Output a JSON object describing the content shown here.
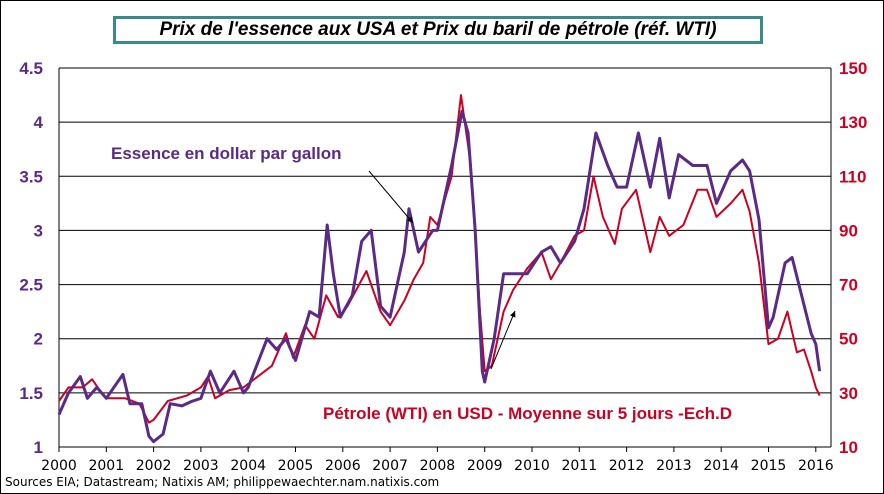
{
  "chart_data": {
    "type": "line",
    "title": "Prix de l'essence aux USA et Prix du baril de pétrole (réf. WTI)",
    "source": "Sources EIA; Datastream; Natixis AM; philippewaechter.nam.natixis.com",
    "xlim": [
      2000,
      2016
    ],
    "x_ticks": [
      "2000",
      "2001",
      "2002",
      "2003",
      "2004",
      "2005",
      "2006",
      "2007",
      "2008",
      "2009",
      "2010",
      "2011",
      "2012",
      "2013",
      "2014",
      "2015",
      "2016"
    ],
    "y_left": {
      "lim": [
        1,
        4.5
      ],
      "ticks": [
        "1",
        "1.5",
        "2",
        "2.5",
        "3",
        "3.5",
        "4",
        "4.5"
      ],
      "color": "#5b2a86"
    },
    "y_right": {
      "lim": [
        10,
        150
      ],
      "ticks": [
        "10",
        "30",
        "50",
        "70",
        "90",
        "110",
        "130",
        "150"
      ],
      "color": "#cc0022"
    },
    "grid": true,
    "series": [
      {
        "name": "Essence en dollar par gallon",
        "axis": "left",
        "color": "#5b2a86",
        "x": [
          2000.0,
          2000.2,
          2000.45,
          2000.6,
          2000.8,
          2001.0,
          2001.35,
          2001.5,
          2001.75,
          2001.9,
          2002.0,
          2002.2,
          2002.35,
          2002.6,
          2002.8,
          2003.0,
          2003.2,
          2003.4,
          2003.7,
          2003.9,
          2004.0,
          2004.4,
          2004.6,
          2004.8,
          2005.0,
          2005.3,
          2005.5,
          2005.67,
          2005.8,
          2005.95,
          2006.2,
          2006.4,
          2006.6,
          2006.8,
          2007.0,
          2007.3,
          2007.4,
          2007.6,
          2007.9,
          2008.0,
          2008.3,
          2008.52,
          2008.65,
          2008.8,
          2008.95,
          2009.0,
          2009.2,
          2009.4,
          2009.6,
          2009.9,
          2010.2,
          2010.4,
          2010.6,
          2010.9,
          2011.1,
          2011.35,
          2011.6,
          2011.8,
          2012.0,
          2012.25,
          2012.5,
          2012.7,
          2012.9,
          2013.1,
          2013.4,
          2013.7,
          2013.9,
          2014.2,
          2014.45,
          2014.6,
          2014.8,
          2015.0,
          2015.1,
          2015.35,
          2015.5,
          2015.7,
          2015.9,
          2016.0,
          2016.08
        ],
        "y": [
          1.3,
          1.5,
          1.65,
          1.45,
          1.55,
          1.45,
          1.67,
          1.4,
          1.4,
          1.1,
          1.05,
          1.12,
          1.4,
          1.38,
          1.42,
          1.45,
          1.7,
          1.5,
          1.7,
          1.5,
          1.55,
          2.0,
          1.9,
          2.0,
          1.8,
          2.25,
          2.2,
          3.05,
          2.6,
          2.2,
          2.4,
          2.9,
          3.0,
          2.3,
          2.2,
          2.8,
          3.2,
          2.8,
          3.0,
          3.0,
          3.6,
          4.1,
          3.9,
          3.0,
          1.7,
          1.6,
          2.0,
          2.6,
          2.6,
          2.6,
          2.8,
          2.85,
          2.7,
          2.9,
          3.2,
          3.9,
          3.6,
          3.4,
          3.4,
          3.9,
          3.4,
          3.85,
          3.3,
          3.7,
          3.6,
          3.6,
          3.25,
          3.55,
          3.65,
          3.55,
          3.1,
          2.1,
          2.2,
          2.7,
          2.75,
          2.4,
          2.05,
          1.95,
          1.7
        ]
      },
      {
        "name": "Pétrole (WTI)  en USD - Moyenne sur 5 jours -Ech.D",
        "axis": "right",
        "color": "#cc0022",
        "x": [
          2000.0,
          2000.2,
          2000.5,
          2000.7,
          2000.9,
          2001.0,
          2001.4,
          2001.7,
          2001.9,
          2002.0,
          2002.3,
          2002.7,
          2003.0,
          2003.15,
          2003.3,
          2003.6,
          2003.9,
          2004.2,
          2004.5,
          2004.8,
          2004.95,
          2005.2,
          2005.4,
          2005.65,
          2005.9,
          2006.1,
          2006.5,
          2006.8,
          2007.0,
          2007.3,
          2007.5,
          2007.7,
          2007.85,
          2008.0,
          2008.3,
          2008.5,
          2008.7,
          2008.9,
          2009.0,
          2009.15,
          2009.4,
          2009.6,
          2009.9,
          2010.2,
          2010.4,
          2010.6,
          2010.9,
          2011.1,
          2011.3,
          2011.5,
          2011.75,
          2011.9,
          2012.2,
          2012.5,
          2012.7,
          2012.9,
          2013.2,
          2013.5,
          2013.7,
          2013.9,
          2014.2,
          2014.45,
          2014.6,
          2014.8,
          2015.0,
          2015.2,
          2015.4,
          2015.6,
          2015.75,
          2015.9,
          2016.0,
          2016.08
        ],
        "y": [
          27,
          32,
          32,
          35,
          30,
          28,
          28,
          26,
          19,
          20,
          27,
          29,
          32,
          36,
          28,
          31,
          32,
          36,
          40,
          52,
          43,
          55,
          50,
          66,
          58,
          62,
          75,
          60,
          55,
          64,
          72,
          78,
          95,
          92,
          110,
          140,
          115,
          60,
          38,
          40,
          60,
          68,
          76,
          82,
          72,
          78,
          88,
          90,
          110,
          95,
          85,
          98,
          105,
          82,
          95,
          88,
          92,
          105,
          105,
          95,
          100,
          105,
          97,
          78,
          48,
          50,
          60,
          45,
          46,
          38,
          32,
          29
        ]
      }
    ]
  }
}
